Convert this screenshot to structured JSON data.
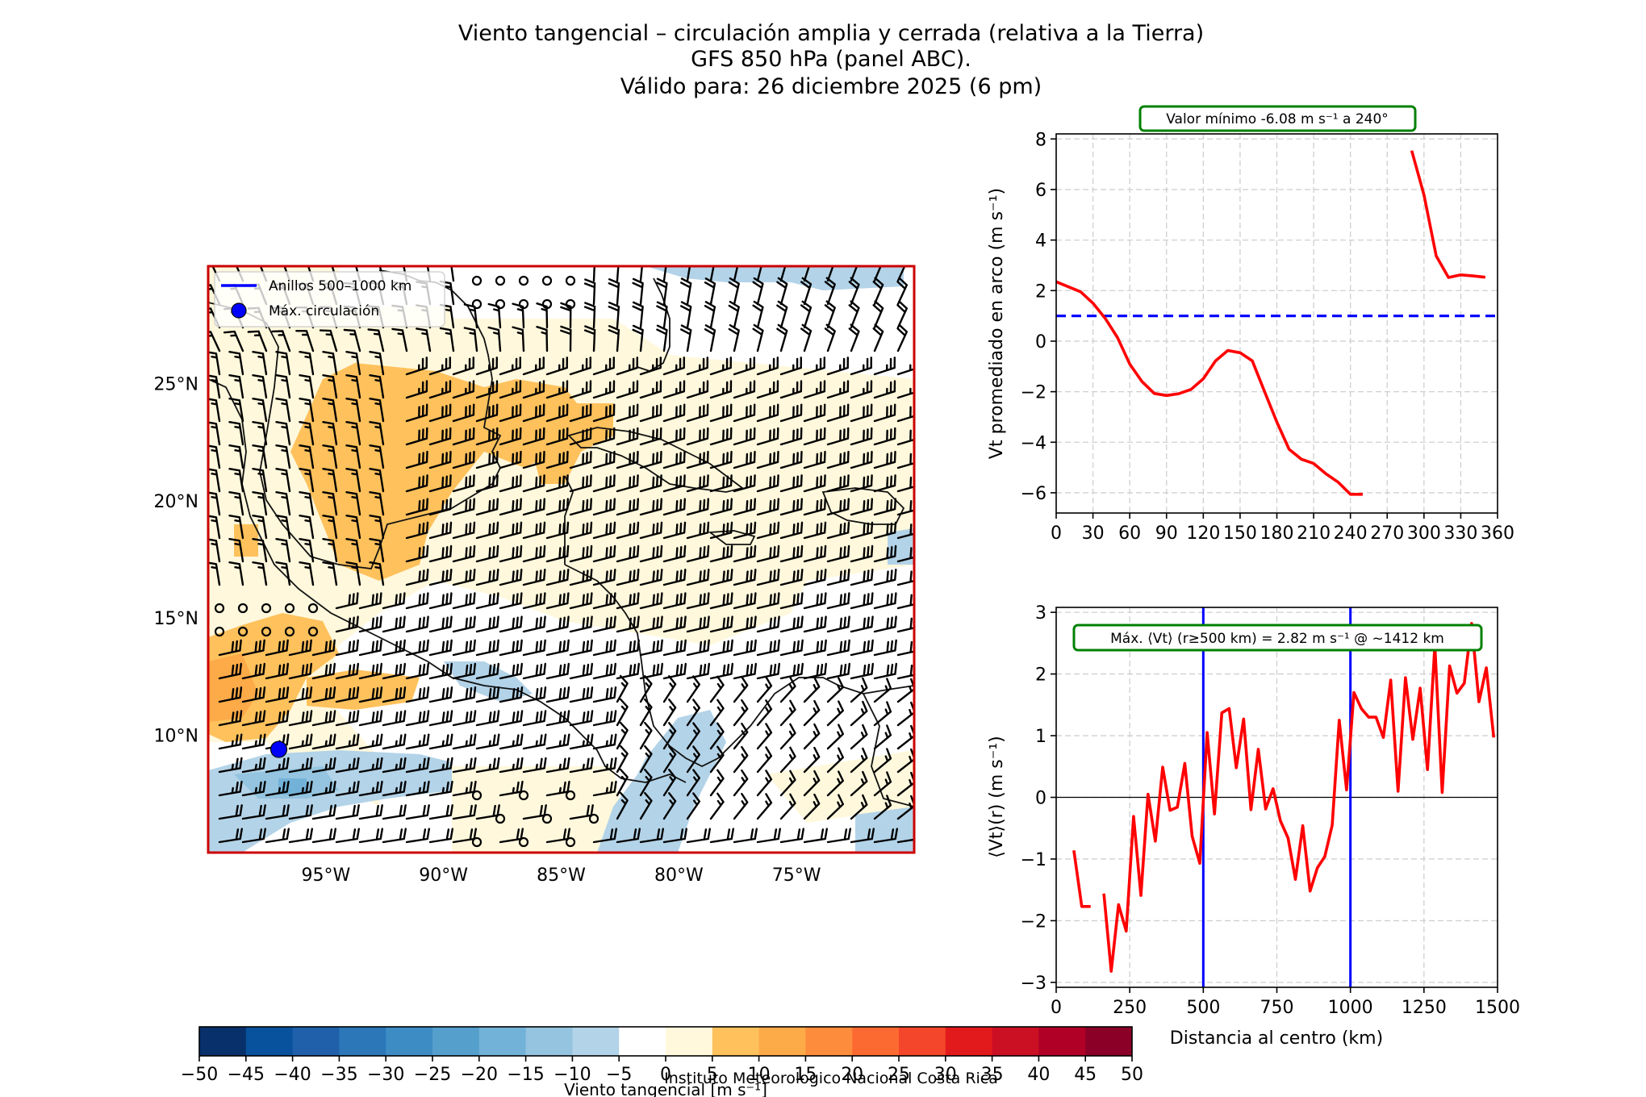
{
  "figure": {
    "title_lines": [
      "Viento tangencial – circulación amplia y cerrada (relativa a la Tierra)",
      "GFS 850 hPa (panel ABC).",
      "Válido para: 26 diciembre 2025 (6 pm)"
    ],
    "credit": "Instituto Meteorologico Nacional Costa Rica"
  },
  "colors": {
    "series_red": "#ff0000",
    "ring_blue": "#0000ff",
    "annotation_green": "#008000",
    "map_frame": "#cc0000"
  },
  "map": {
    "lon_range": [
      -100,
      -70
    ],
    "lat_range": [
      5,
      30
    ],
    "lon_ticks": [
      "95°W",
      "90°W",
      "85°W",
      "80°W",
      "75°W"
    ],
    "lon_tick_values": [
      -95,
      -90,
      -85,
      -80,
      -75
    ],
    "lat_ticks": [
      "25°N",
      "20°N",
      "15°N",
      "10°N"
    ],
    "lat_tick_values": [
      25,
      20,
      15,
      10
    ],
    "legend": {
      "rings_label": "Anillos 500–1000 km",
      "max_label": "Máx. circulación"
    },
    "max_circulation_point": {
      "lon": -97.0,
      "lat": 9.4
    }
  },
  "colorbar": {
    "label": "Viento tangencial [m s⁻¹]",
    "boundaries": [
      -50,
      -45,
      -40,
      -35,
      -30,
      -25,
      -20,
      -15,
      -10,
      -5,
      0,
      5,
      10,
      15,
      20,
      25,
      30,
      35,
      40,
      45,
      50
    ],
    "tick_labels": [
      "−50",
      "−45",
      "−40",
      "−35",
      "−30",
      "−25",
      "−20",
      "−15",
      "−10",
      "−5",
      "0",
      "5",
      "10",
      "15",
      "20",
      "25",
      "30",
      "35",
      "40",
      "45",
      "50"
    ],
    "colors": [
      "#08306b",
      "#08519c",
      "#2060aa",
      "#2b77b8",
      "#3d8dc4",
      "#559fcd",
      "#73b2d8",
      "#94c4df",
      "#b3d3e8",
      "#ffffff",
      "#fff8dc",
      "#fec15c",
      "#fdaa48",
      "#fd8d3c",
      "#fc6a32",
      "#f4462a",
      "#e31a1c",
      "#cc1024",
      "#b10026",
      "#8b0026"
    ]
  },
  "chart_data": [
    {
      "type": "line",
      "title": "Valor mínimo -6.08 m s⁻¹ a 240°",
      "xlabel": "",
      "ylabel": "Vt promediado en arco (m s⁻¹)",
      "xlim": [
        0,
        360
      ],
      "ylim": [
        -6.8,
        8.2
      ],
      "x_ticks": [
        0,
        30,
        60,
        90,
        120,
        150,
        180,
        210,
        240,
        270,
        300,
        330,
        360
      ],
      "x_tick_labels": [
        "0",
        "30",
        "60",
        "90",
        "120",
        "150",
        "180",
        "210",
        "240",
        "270",
        "300",
        "330",
        "360"
      ],
      "y_ticks": [
        -6,
        -4,
        -2,
        0,
        2,
        4,
        6,
        8
      ],
      "y_tick_labels": [
        "−6",
        "−4",
        "−2",
        "0",
        "2",
        "4",
        "6",
        "8"
      ],
      "grid": true,
      "reference_line": {
        "y": 1.0,
        "style": "dashed",
        "color": "#0000ff"
      },
      "series": [
        {
          "name": "Vt arc mean",
          "segments": [
            {
              "x": [
                0,
                10,
                20,
                30,
                40,
                50,
                60,
                70,
                80,
                90,
                100,
                110,
                120,
                130,
                140,
                150,
                160,
                170,
                180,
                190,
                200,
                210,
                220,
                230,
                240,
                250
              ],
              "y": [
                2.35,
                2.15,
                1.95,
                1.5,
                0.9,
                0.14,
                -0.91,
                -1.6,
                -2.07,
                -2.15,
                -2.08,
                -1.91,
                -1.49,
                -0.78,
                -0.37,
                -0.46,
                -0.78,
                -2.0,
                -3.2,
                -4.28,
                -4.67,
                -4.84,
                -5.25,
                -5.58,
                -6.06,
                -6.06
              ]
            },
            {
              "x": [
                290,
                300,
                310,
                320,
                330,
                340,
                350
              ],
              "y": [
                7.54,
                5.79,
                3.37,
                2.52,
                2.62,
                2.58,
                2.53
              ]
            }
          ]
        }
      ]
    },
    {
      "type": "line",
      "title": "Máx. ⟨Vt⟩ (r≥500 km) = 2.82 m s⁻¹ @ ~1412 km",
      "xlabel": "Distancia al centro (km)",
      "ylabel": "⟨Vt⟩(r) (m s⁻¹)",
      "xlim": [
        0,
        1500
      ],
      "ylim": [
        -3.08,
        3.08
      ],
      "x_ticks": [
        0,
        250,
        500,
        750,
        1000,
        1250,
        1500
      ],
      "x_tick_labels": [
        "0",
        "250",
        "500",
        "750",
        "1000",
        "1250",
        "1500"
      ],
      "y_ticks": [
        -3,
        -2,
        -1,
        0,
        1,
        2,
        3
      ],
      "y_tick_labels": [
        "−3",
        "−2",
        "−1",
        "0",
        "1",
        "2",
        "3"
      ],
      "grid": true,
      "vertical_lines": [
        500,
        1000
      ],
      "zero_line": 0,
      "series": [
        {
          "name": "⟨Vt⟩(r)",
          "segments": [
            {
              "x": [
                60,
                87,
                117
              ],
              "y": [
                -0.86,
                -1.77,
                -1.77
              ]
            },
            {
              "x": [
                162,
                187,
                212,
                238,
                263,
                288,
                312,
                337,
                362,
                387,
                412,
                437,
                462,
                488,
                513,
                538,
                563,
                588,
                612,
                637,
                662,
                687,
                712,
                737,
                762,
                788,
                813,
                838,
                863,
                888,
                913,
                938,
                962,
                987,
                1012,
                1037,
                1062,
                1087,
                1112,
                1137,
                1162,
                1187,
                1212,
                1237,
                1262,
                1287,
                1312,
                1337,
                1362,
                1387,
                1412,
                1437,
                1462,
                1487
              ],
              "y": [
                -1.56,
                -2.82,
                -1.74,
                -2.17,
                -0.31,
                -1.59,
                0.05,
                -0.71,
                0.49,
                -0.21,
                -0.16,
                0.55,
                -0.63,
                -1.07,
                1.05,
                -0.27,
                1.37,
                1.44,
                0.48,
                1.27,
                -0.2,
                0.78,
                -0.19,
                0.14,
                -0.38,
                -0.66,
                -1.33,
                -0.46,
                -1.52,
                -1.14,
                -0.96,
                -0.45,
                1.25,
                0.12,
                1.7,
                1.44,
                1.3,
                1.3,
                0.97,
                1.9,
                0.1,
                1.94,
                0.94,
                1.77,
                0.45,
                2.46,
                0.08,
                2.13,
                1.69,
                1.85,
                2.82,
                1.55,
                2.1,
                0.97
              ]
            }
          ]
        }
      ]
    }
  ]
}
